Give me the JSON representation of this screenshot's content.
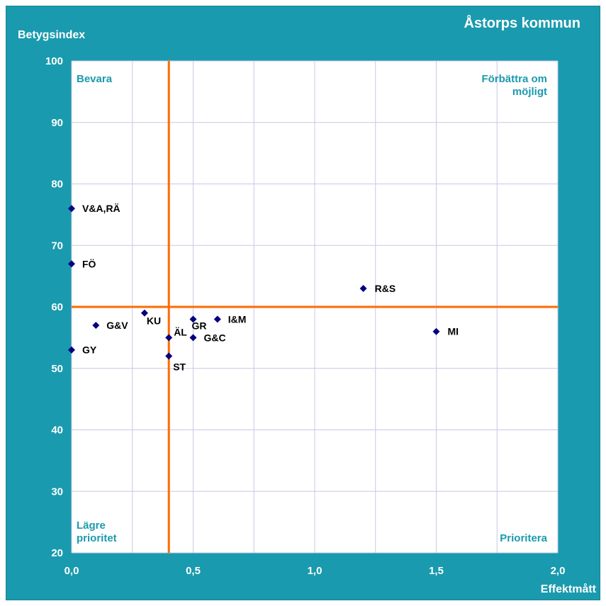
{
  "chart_data": {
    "type": "scatter",
    "title": "Åstorps kommun",
    "xlabel": "Effektmått",
    "ylabel": "Betygsindex",
    "xlim": [
      0,
      2
    ],
    "ylim": [
      20,
      100
    ],
    "xticks": [
      0,
      0.5,
      1.0,
      1.5,
      2.0
    ],
    "xtick_labels": [
      "0,0",
      "0,5",
      "1,0",
      "1,5",
      "2,0"
    ],
    "yticks": [
      20,
      30,
      40,
      50,
      60,
      70,
      80,
      90,
      100
    ],
    "ytick_labels": [
      "20",
      "30",
      "40",
      "50",
      "60",
      "70",
      "80",
      "90",
      "100"
    ],
    "grid": true,
    "reference_lines": {
      "x": 0.4,
      "y": 60,
      "color": "#ff6a00"
    },
    "quadrant_labels": {
      "top_left": [
        "Bevara"
      ],
      "top_right": [
        "Förbättra om",
        "möjligt"
      ],
      "bottom_left": [
        "Lägre",
        "prioritet"
      ],
      "bottom_right": [
        "Prioritera"
      ]
    },
    "marker_color": "#000080",
    "points": [
      {
        "label": "V&A,RÄ",
        "x": 0.0,
        "y": 76
      },
      {
        "label": "FÖ",
        "x": 0.0,
        "y": 67
      },
      {
        "label": "GY",
        "x": 0.0,
        "y": 53
      },
      {
        "label": "G&V",
        "x": 0.1,
        "y": 57
      },
      {
        "label": "KU",
        "x": 0.3,
        "y": 59
      },
      {
        "label": "ÄL",
        "x": 0.4,
        "y": 55
      },
      {
        "label": "ST",
        "x": 0.4,
        "y": 52
      },
      {
        "label": "GR",
        "x": 0.5,
        "y": 58
      },
      {
        "label": "G&C",
        "x": 0.5,
        "y": 55
      },
      {
        "label": "I&M",
        "x": 0.6,
        "y": 58
      },
      {
        "label": "R&S",
        "x": 1.2,
        "y": 63
      },
      {
        "label": "MI",
        "x": 1.5,
        "y": 56
      }
    ]
  }
}
